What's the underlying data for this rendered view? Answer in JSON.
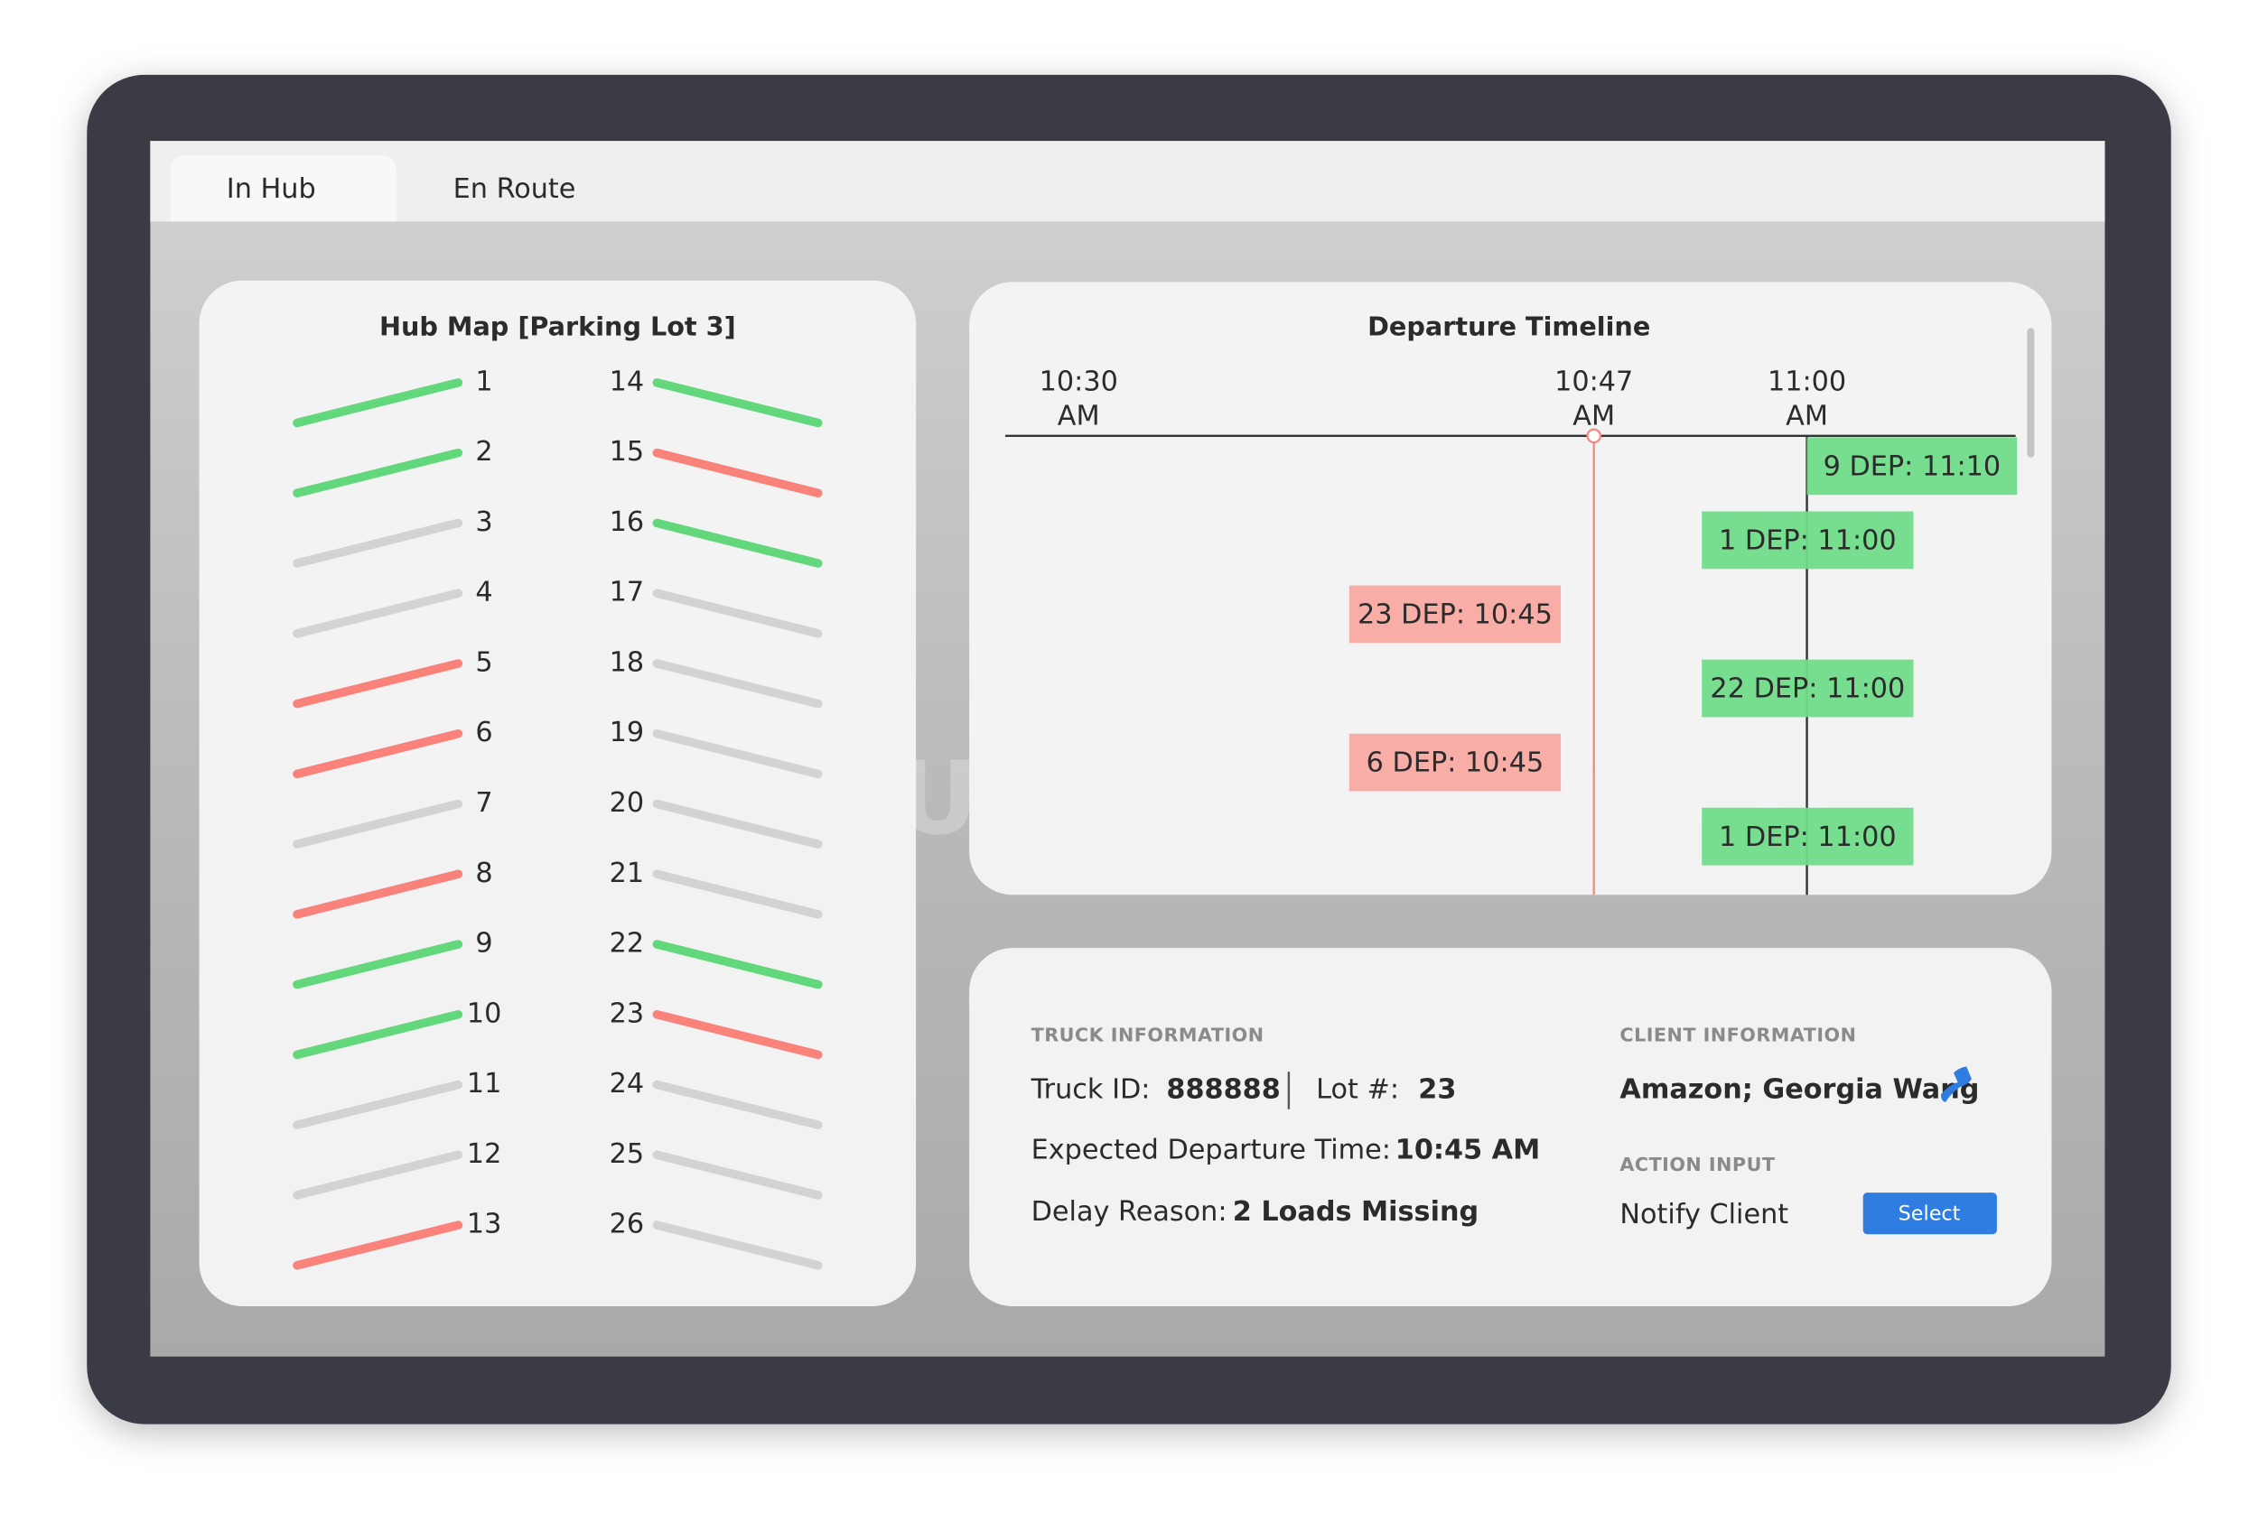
{
  "tabs": [
    "In Hub",
    "En Route"
  ],
  "background_text": "AUTONOMOUS",
  "hub_map": {
    "title": "Hub Map [Parking Lot 3]",
    "lots": [
      {
        "number": 1,
        "color": "#63d77c"
      },
      {
        "number": 2,
        "color": "#63d77c"
      },
      {
        "number": 3,
        "color": "#d3d3d3"
      },
      {
        "number": 4,
        "color": "#d3d3d3"
      },
      {
        "number": 5,
        "color": "#f9837b"
      },
      {
        "number": 6,
        "color": "#f9837b"
      },
      {
        "number": 7,
        "color": "#d3d3d3"
      },
      {
        "number": 8,
        "color": "#f9837b"
      },
      {
        "number": 9,
        "color": "#63d77c"
      },
      {
        "number": 10,
        "color": "#63d77c"
      },
      {
        "number": 11,
        "color": "#d3d3d3"
      },
      {
        "number": 12,
        "color": "#d3d3d3"
      },
      {
        "number": 13,
        "color": "#f9837b"
      },
      {
        "number": 14,
        "color": "#63d77c"
      },
      {
        "number": 15,
        "color": "#f9837b"
      },
      {
        "number": 16,
        "color": "#63d77c"
      },
      {
        "number": 17,
        "color": "#d3d3d3"
      },
      {
        "number": 18,
        "color": "#d3d3d3"
      },
      {
        "number": 19,
        "color": "#d3d3d3"
      },
      {
        "number": 20,
        "color": "#d3d3d3"
      },
      {
        "number": 21,
        "color": "#d3d3d3"
      },
      {
        "number": 22,
        "color": "#63d77c"
      },
      {
        "number": 23,
        "color": "#f9837b"
      },
      {
        "number": 24,
        "color": "#d3d3d3"
      },
      {
        "number": 25,
        "color": "#d3d3d3"
      },
      {
        "number": 26,
        "color": "#d3d3d3"
      }
    ]
  },
  "timeline": {
    "title": "Departure Timeline",
    "times": [
      {
        "time": "10:30",
        "period": "AM"
      },
      {
        "time": "10:47",
        "period": "AM"
      },
      {
        "time": "11:00",
        "period": "AM"
      }
    ],
    "entries": [
      {
        "label": "9 DEP: 11:10",
        "color": "#6fdc88"
      },
      {
        "label": "1 DEP: 11:00",
        "color": "#6fdc88"
      },
      {
        "label": "23 DEP: 10:45",
        "color": "#f9a9a2"
      },
      {
        "label": "22 DEP: 11:00",
        "color": "#6fdc88"
      },
      {
        "label": "6 DEP: 10:45",
        "color": "#f9a9a2"
      },
      {
        "label": "1 DEP: 11:00",
        "color": "#6fdc88"
      }
    ]
  },
  "truck_info": {
    "heading": "TRUCK INFORMATION",
    "truck_id_label": "Truck ID:",
    "truck_id": "888888",
    "lot_label": "Lot #:",
    "lot": "23",
    "departure_label": "Expected Departure Time:",
    "departure": "10:45 AM",
    "delay_label": "Delay Reason:",
    "delay": "2 Loads Missing"
  },
  "client_info": {
    "heading": "CLIENT INFORMATION",
    "client": "Amazon; Georgia Wang"
  },
  "action_input": {
    "heading": "ACTION INPUT",
    "action": "Notify Client",
    "button": "Select"
  }
}
